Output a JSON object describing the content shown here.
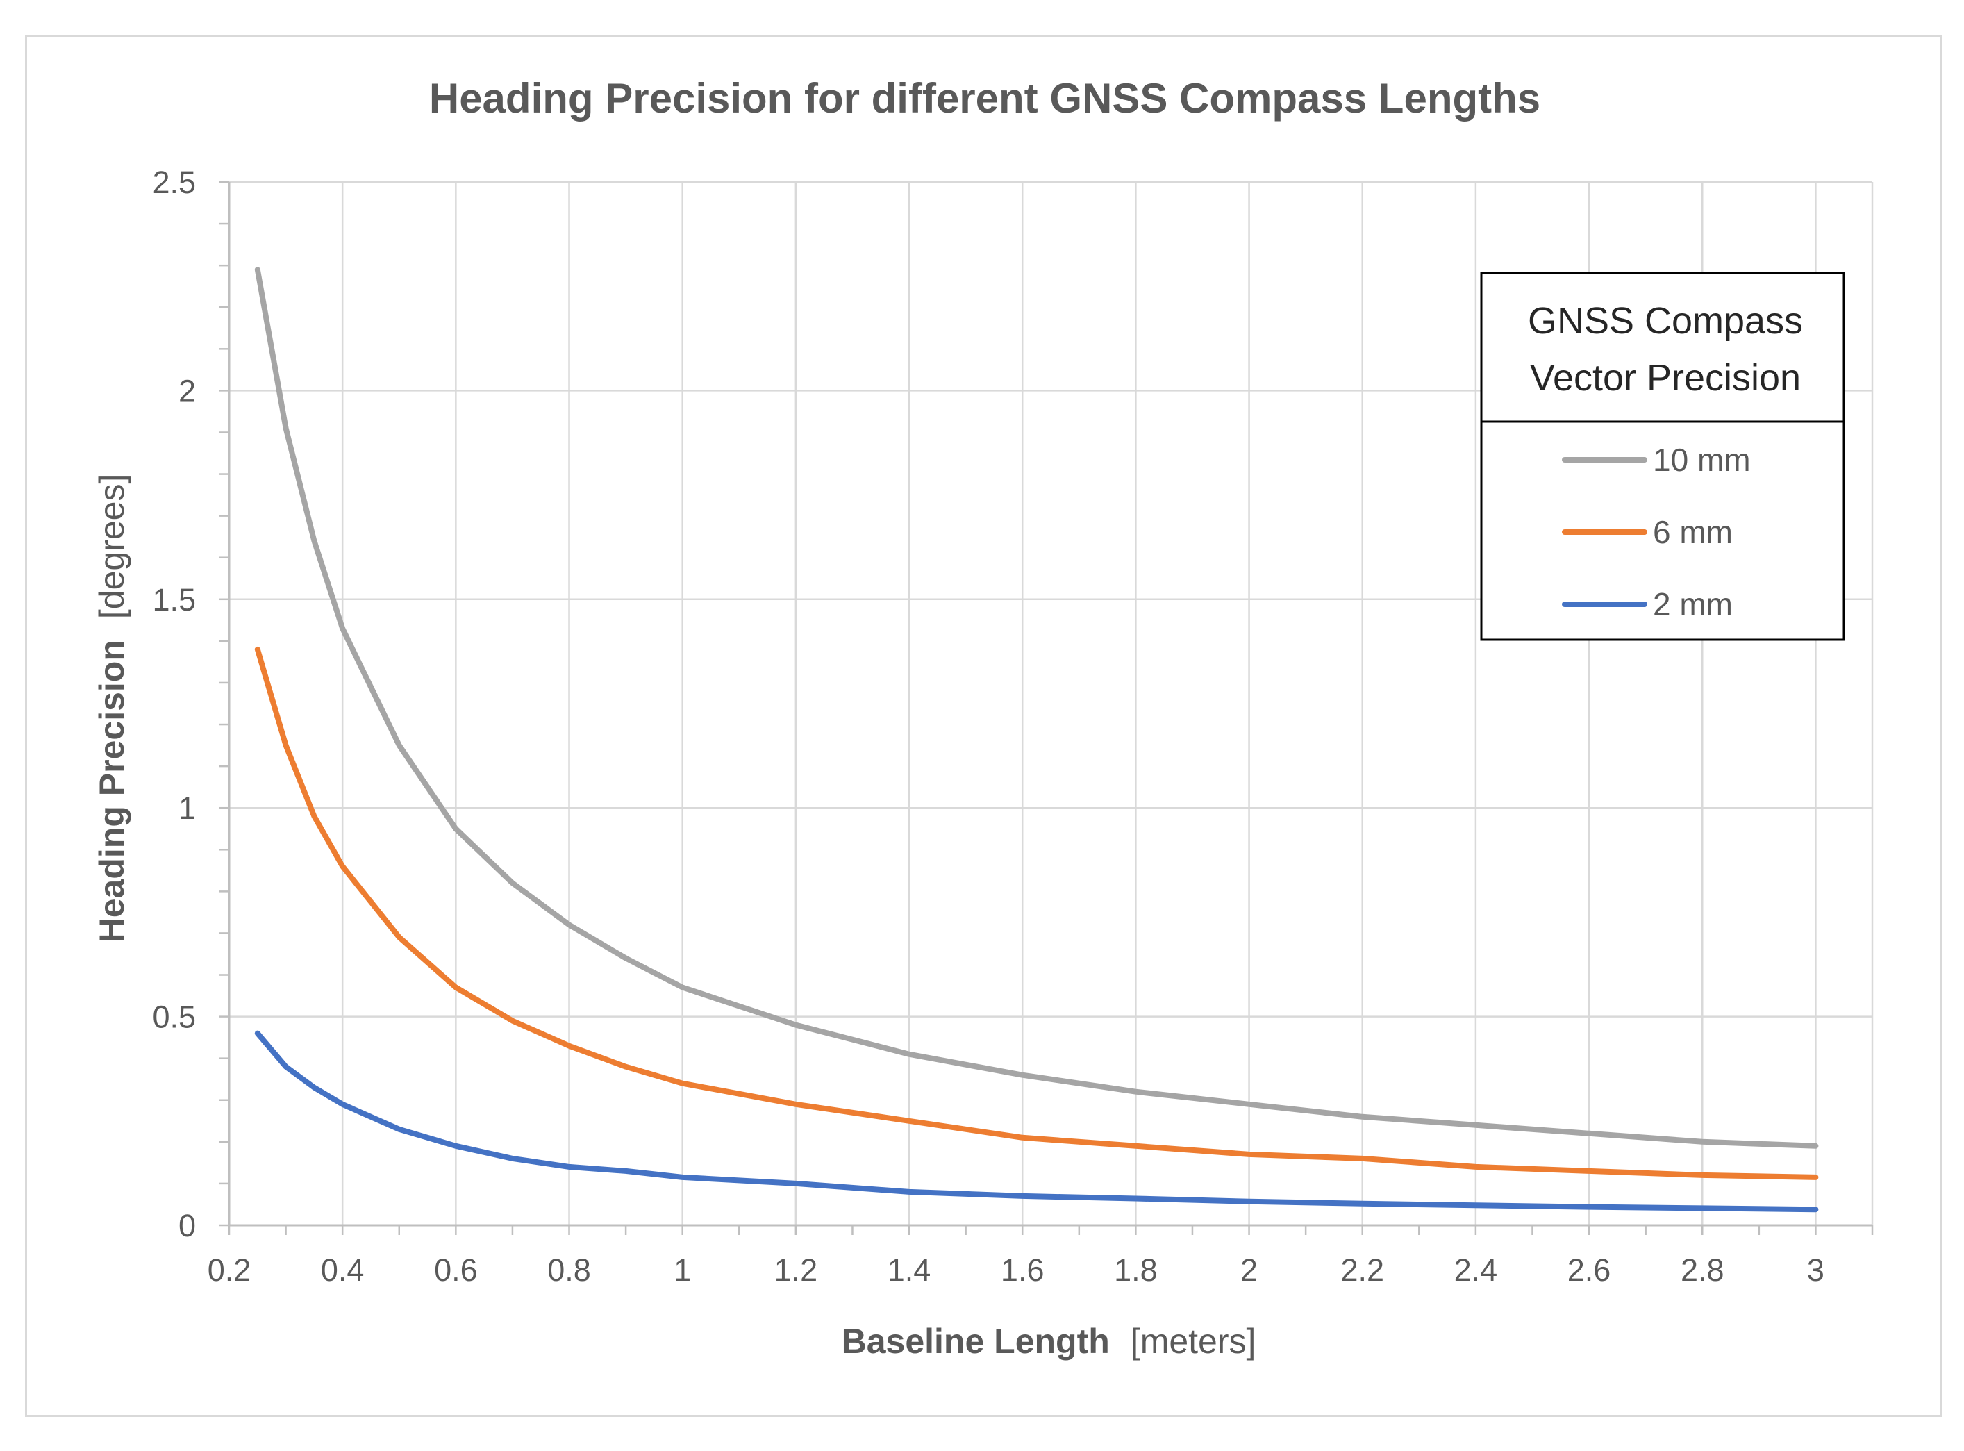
{
  "chart_data": {
    "type": "line",
    "title": "Heading Precision for different GNSS Compass Lengths",
    "xlabel": "Baseline Length",
    "xlabel_unit": "[meters]",
    "ylabel": "Heading Precision",
    "ylabel_unit": "[degrees]",
    "xlim": [
      0.2,
      3.1
    ],
    "ylim": [
      0,
      2.5
    ],
    "x_ticks": [
      0.2,
      0.4,
      0.6,
      0.8,
      1,
      1.2,
      1.4,
      1.6,
      1.8,
      2,
      2.2,
      2.4,
      2.6,
      2.8,
      3
    ],
    "x_tick_labels": [
      "0.2",
      "0.4",
      "0.6",
      "0.8",
      "1",
      "1.2",
      "1.4",
      "1.6",
      "1.8",
      "2",
      "2.2",
      "2.4",
      "2.6",
      "2.8",
      "3"
    ],
    "y_ticks": [
      0,
      0.5,
      1,
      1.5,
      2,
      2.5
    ],
    "y_tick_labels": [
      "0",
      "0.5",
      "1",
      "1.5",
      "2",
      "2.5"
    ],
    "grid": true,
    "legend": {
      "title_lines": [
        "GNSS Compass",
        "Vector Precision"
      ],
      "position": "top-right"
    },
    "x": [
      0.25,
      0.3,
      0.35,
      0.4,
      0.5,
      0.6,
      0.7,
      0.8,
      0.9,
      1.0,
      1.2,
      1.4,
      1.6,
      1.8,
      2.0,
      2.2,
      2.4,
      2.6,
      2.8,
      3.0
    ],
    "series": [
      {
        "name": "10 mm",
        "color": "#a5a5a5",
        "values": [
          2.29,
          1.91,
          1.64,
          1.43,
          1.15,
          0.95,
          0.82,
          0.72,
          0.64,
          0.57,
          0.48,
          0.41,
          0.36,
          0.32,
          0.29,
          0.26,
          0.24,
          0.22,
          0.2,
          0.19
        ]
      },
      {
        "name": "6 mm",
        "color": "#ed7d31",
        "values": [
          1.38,
          1.15,
          0.98,
          0.86,
          0.69,
          0.57,
          0.49,
          0.43,
          0.38,
          0.34,
          0.29,
          0.25,
          0.21,
          0.19,
          0.17,
          0.16,
          0.14,
          0.13,
          0.12,
          0.115
        ]
      },
      {
        "name": "2 mm",
        "color": "#4472c4",
        "values": [
          0.46,
          0.38,
          0.33,
          0.29,
          0.23,
          0.19,
          0.16,
          0.14,
          0.13,
          0.115,
          0.1,
          0.08,
          0.07,
          0.064,
          0.057,
          0.052,
          0.048,
          0.044,
          0.041,
          0.038
        ]
      }
    ]
  }
}
